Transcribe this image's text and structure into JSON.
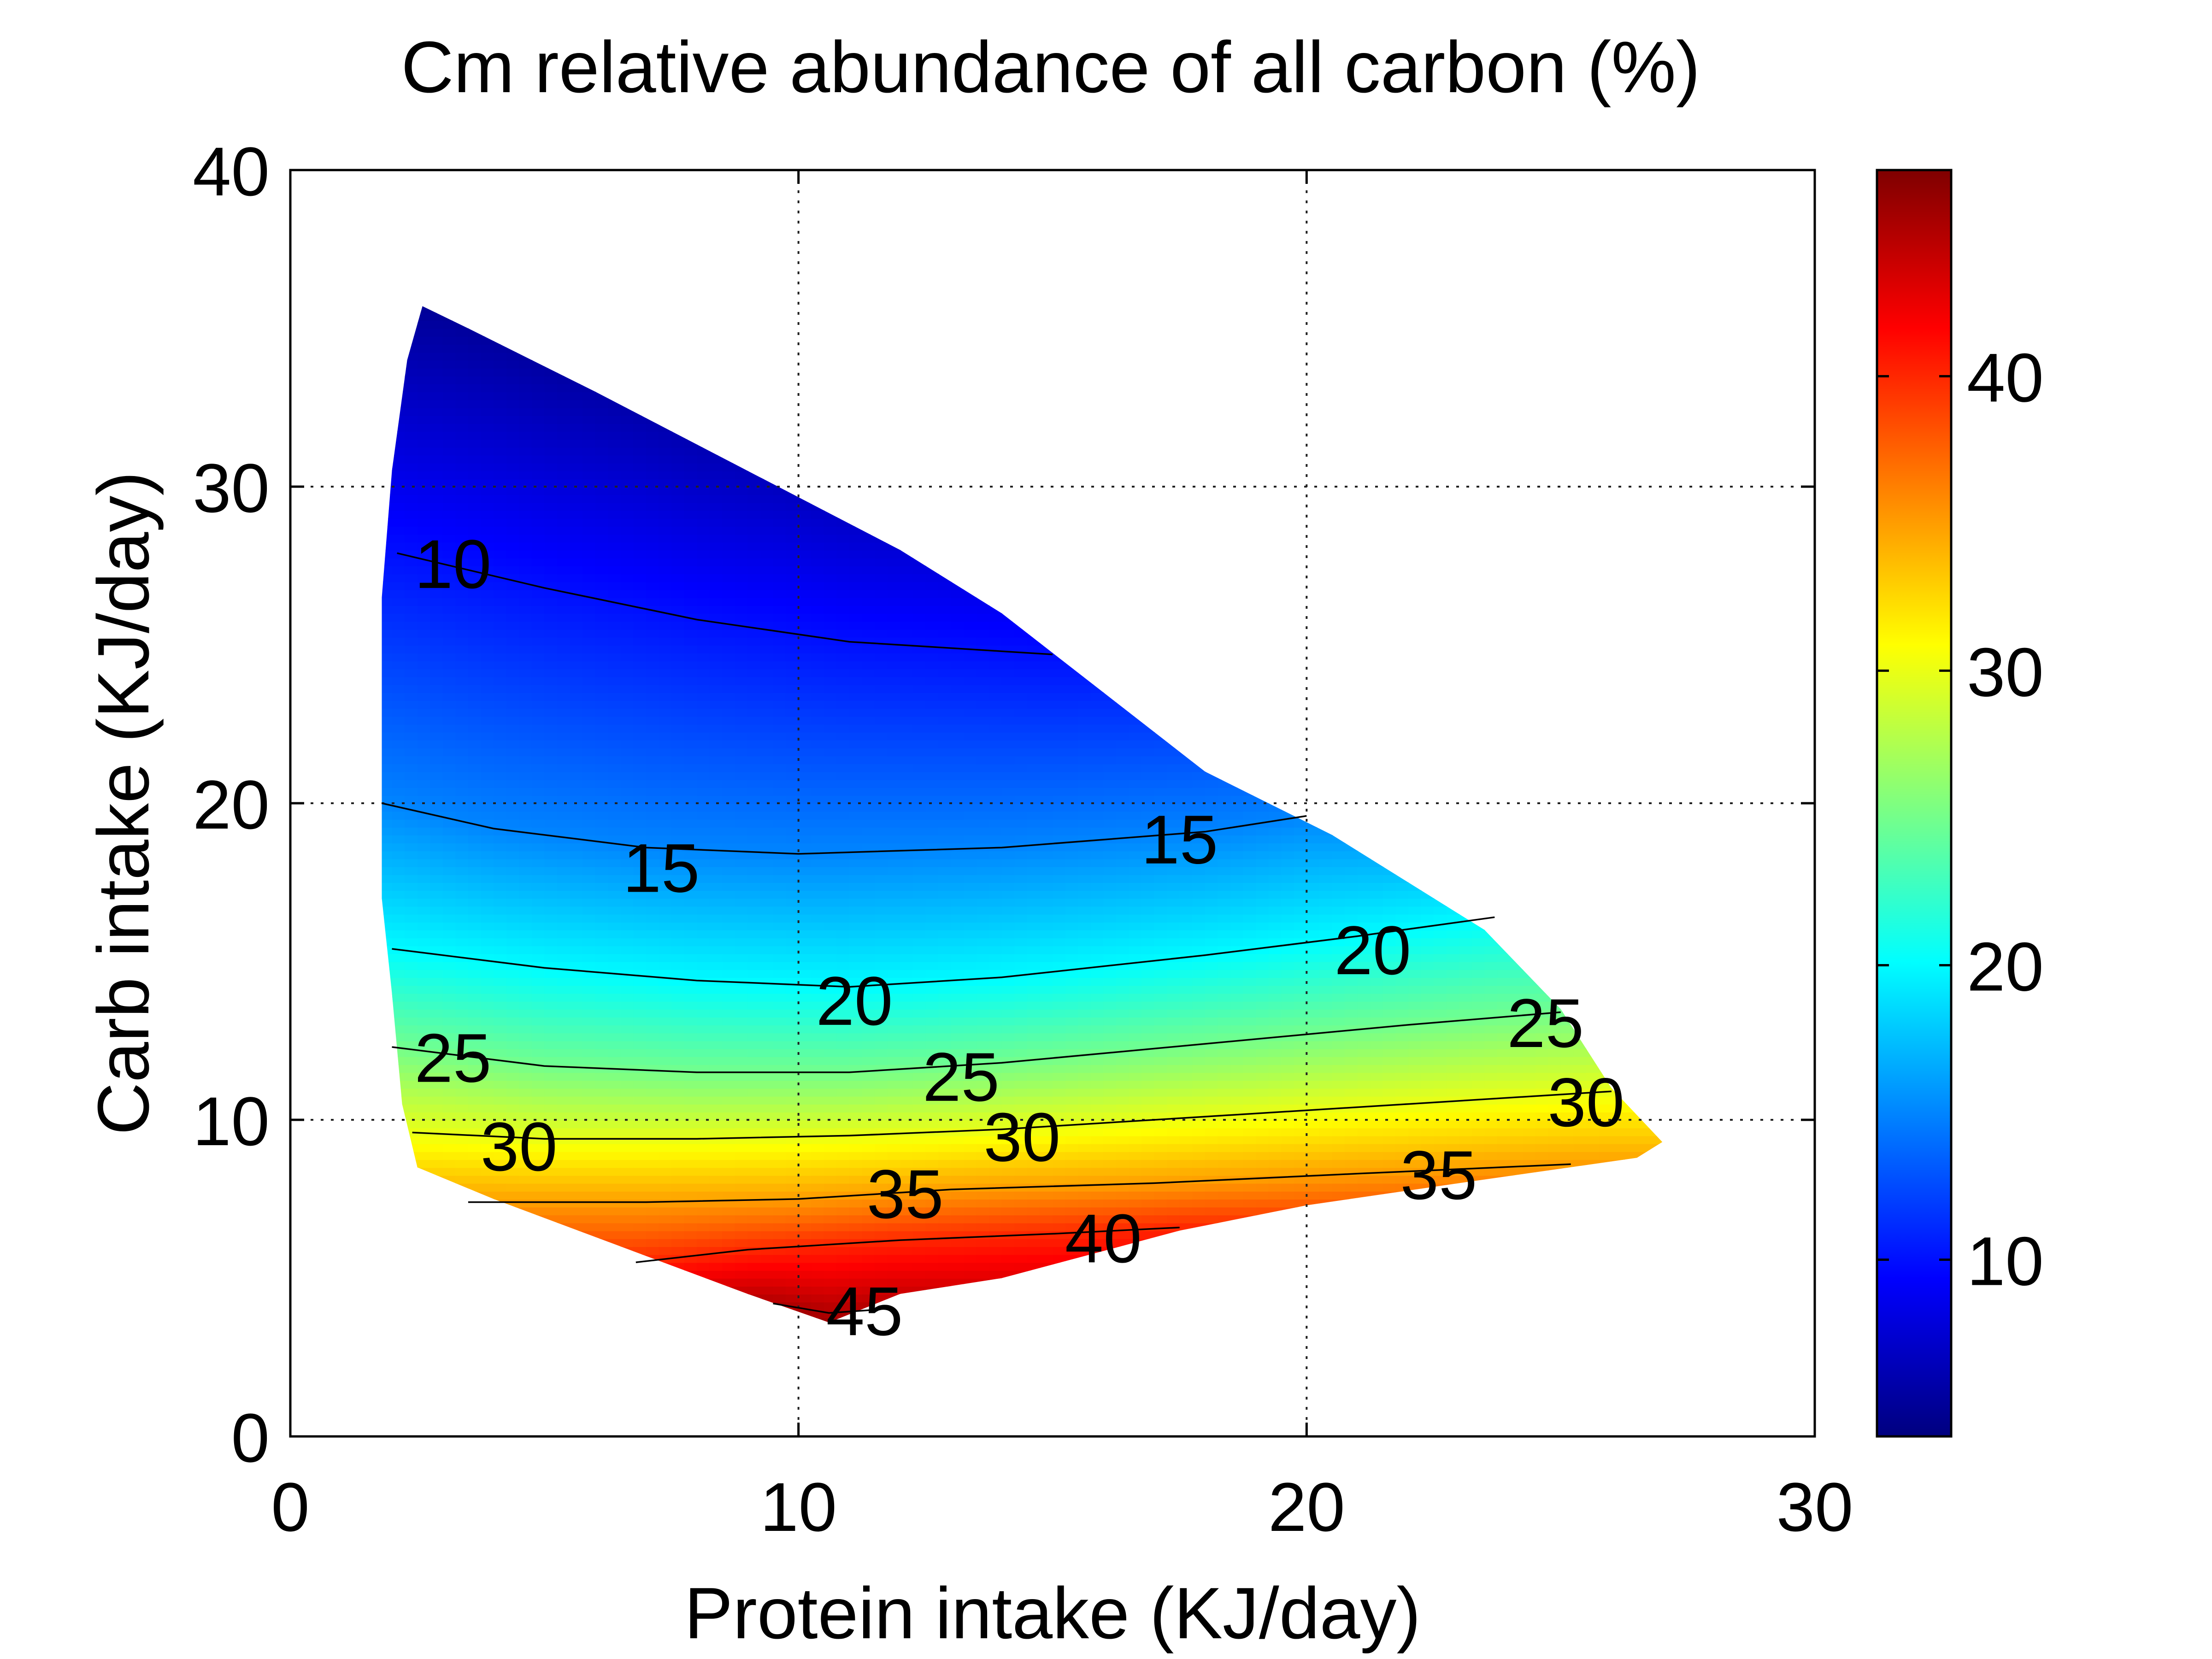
{
  "chart_data": {
    "type": "heatmap",
    "title": "Cm relative abundance of all carbon (%)",
    "xlabel": "Protein intake (KJ/day)",
    "ylabel": "Carb intake (KJ/day)",
    "xlim": [
      0,
      30
    ],
    "ylim": [
      0,
      40
    ],
    "xticks": [
      0,
      10,
      20,
      30
    ],
    "yticks": [
      0,
      10,
      20,
      30,
      40
    ],
    "xtick_labels": [
      "0",
      "10",
      "20",
      "30"
    ],
    "ytick_labels": [
      "0",
      "10",
      "20",
      "30",
      "40"
    ],
    "grid": true,
    "colormap": "jet",
    "colorbar": {
      "range": [
        4,
        47
      ],
      "ticks": [
        10,
        20,
        30,
        40
      ],
      "tick_labels": [
        "10",
        "20",
        "30",
        "40"
      ]
    },
    "region_outline": [
      [
        2.6,
        35.7
      ],
      [
        3.5,
        35.0
      ],
      [
        6.0,
        33.0
      ],
      [
        9.0,
        30.5
      ],
      [
        12.0,
        28.0
      ],
      [
        14.0,
        26.0
      ],
      [
        16.0,
        23.5
      ],
      [
        18.0,
        21.0
      ],
      [
        20.5,
        19.0
      ],
      [
        22.0,
        17.5
      ],
      [
        23.5,
        16.0
      ],
      [
        25.0,
        13.5
      ],
      [
        26.0,
        11.0
      ],
      [
        27.0,
        9.3
      ],
      [
        26.5,
        8.8
      ],
      [
        23.0,
        8.0
      ],
      [
        20.0,
        7.3
      ],
      [
        17.5,
        6.5
      ],
      [
        14.0,
        5.0
      ],
      [
        12.0,
        4.5
      ],
      [
        10.6,
        3.6
      ],
      [
        9.0,
        4.5
      ],
      [
        6.5,
        6.0
      ],
      [
        4.0,
        7.5
      ],
      [
        2.5,
        8.5
      ],
      [
        2.2,
        10.5
      ],
      [
        2.0,
        14.0
      ],
      [
        1.8,
        17.0
      ],
      [
        1.8,
        26.5
      ],
      [
        2.0,
        30.5
      ],
      [
        2.3,
        34.0
      ]
    ],
    "contours": [
      {
        "level": 10,
        "label": "10",
        "points": [
          [
            2.1,
            27.9
          ],
          [
            5.0,
            26.8
          ],
          [
            8.0,
            25.8
          ],
          [
            11.0,
            25.1
          ],
          [
            14.0,
            24.8
          ],
          [
            15.0,
            24.7
          ]
        ],
        "labels_at": [
          [
            3.2,
            27.6
          ]
        ]
      },
      {
        "level": 15,
        "label": "15",
        "points": [
          [
            1.8,
            20.0
          ],
          [
            4.0,
            19.2
          ],
          [
            7.0,
            18.6
          ],
          [
            10.0,
            18.4
          ],
          [
            14.0,
            18.6
          ],
          [
            18.0,
            19.1
          ],
          [
            20.0,
            19.6
          ]
        ],
        "labels_at": [
          [
            7.3,
            18.0
          ],
          [
            17.5,
            18.9
          ]
        ]
      },
      {
        "level": 20,
        "label": "20",
        "points": [
          [
            2.0,
            15.4
          ],
          [
            5.0,
            14.8
          ],
          [
            8.0,
            14.4
          ],
          [
            11.0,
            14.2
          ],
          [
            14.0,
            14.5
          ],
          [
            18.0,
            15.2
          ],
          [
            21.0,
            15.8
          ],
          [
            23.7,
            16.4
          ]
        ],
        "labels_at": [
          [
            11.1,
            13.8
          ],
          [
            21.3,
            15.4
          ]
        ]
      },
      {
        "level": 25,
        "label": "25",
        "points": [
          [
            2.0,
            12.3
          ],
          [
            5.0,
            11.7
          ],
          [
            8.0,
            11.5
          ],
          [
            11.0,
            11.5
          ],
          [
            14.0,
            11.8
          ],
          [
            18.0,
            12.4
          ],
          [
            22.0,
            13.0
          ],
          [
            25.0,
            13.4
          ]
        ],
        "labels_at": [
          [
            3.2,
            12.0
          ],
          [
            13.2,
            11.4
          ],
          [
            24.7,
            13.1
          ]
        ]
      },
      {
        "level": 30,
        "label": "30",
        "points": [
          [
            2.4,
            9.6
          ],
          [
            5.0,
            9.4
          ],
          [
            8.0,
            9.4
          ],
          [
            11.0,
            9.5
          ],
          [
            14.0,
            9.7
          ],
          [
            18.0,
            10.1
          ],
          [
            22.0,
            10.5
          ],
          [
            26.0,
            10.9
          ]
        ],
        "labels_at": [
          [
            4.5,
            9.2
          ],
          [
            14.4,
            9.5
          ],
          [
            25.5,
            10.6
          ]
        ]
      },
      {
        "level": 35,
        "label": "35",
        "points": [
          [
            3.5,
            7.4
          ],
          [
            7.0,
            7.4
          ],
          [
            10.0,
            7.5
          ],
          [
            13.0,
            7.8
          ],
          [
            17.0,
            8.0
          ],
          [
            21.0,
            8.3
          ],
          [
            25.2,
            8.6
          ]
        ],
        "labels_at": [
          [
            12.1,
            7.7
          ],
          [
            22.6,
            8.3
          ]
        ]
      },
      {
        "level": 40,
        "label": "40",
        "points": [
          [
            6.8,
            5.5
          ],
          [
            9.0,
            5.9
          ],
          [
            12.0,
            6.2
          ],
          [
            15.0,
            6.4
          ],
          [
            17.5,
            6.6
          ]
        ],
        "labels_at": [
          [
            16.0,
            6.3
          ]
        ]
      },
      {
        "level": 45,
        "label": "45",
        "points": [
          [
            9.5,
            4.2
          ],
          [
            10.6,
            3.9
          ],
          [
            11.5,
            4.0
          ]
        ],
        "labels_at": [
          [
            11.3,
            4.0
          ]
        ]
      }
    ]
  }
}
